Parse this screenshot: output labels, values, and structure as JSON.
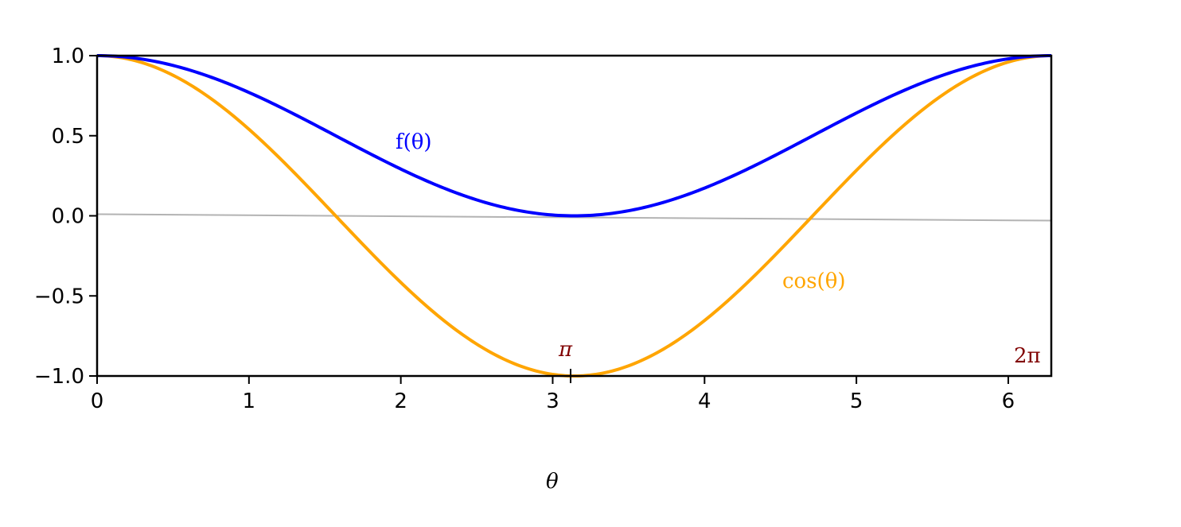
{
  "chart_data": {
    "type": "line",
    "title": "",
    "xlabel": "θ",
    "ylabel": "",
    "xlim": [
      0,
      6.2832
    ],
    "ylim": [
      -1.0,
      1.0
    ],
    "grid": false,
    "xticks": [
      "0",
      "1",
      "2",
      "3",
      "4",
      "5",
      "6"
    ],
    "yticks": [
      "1.0",
      "0.5",
      "0.0",
      "−0.5",
      "−1.0"
    ],
    "series": [
      {
        "name": "f(θ)",
        "color": "#0000ff",
        "formula": "(1+cos θ)/2",
        "x": [
          0,
          0.785,
          1.571,
          2.356,
          3.1416,
          3.927,
          4.712,
          5.498,
          6.2832
        ],
        "y": [
          1.0,
          0.854,
          0.5,
          0.146,
          0.0,
          0.146,
          0.5,
          0.854,
          1.0
        ]
      },
      {
        "name": "cos(θ)",
        "color": "#ffa500",
        "formula": "cos θ",
        "x": [
          0,
          0.785,
          1.571,
          2.356,
          3.1416,
          3.927,
          4.712,
          5.498,
          6.2832
        ],
        "y": [
          1.0,
          0.707,
          0.0,
          -0.707,
          -1.0,
          -0.707,
          0.0,
          0.707,
          1.0
        ]
      }
    ],
    "reference_line": {
      "color": "#b3b3b3",
      "x": [
        0,
        6.2832
      ],
      "y": [
        0.01,
        -0.03
      ]
    },
    "annotations": [
      {
        "text": "π",
        "x": 3.1416,
        "color": "#800000"
      },
      {
        "text": "2π",
        "x": 6.2832,
        "color": "#800000"
      }
    ]
  }
}
